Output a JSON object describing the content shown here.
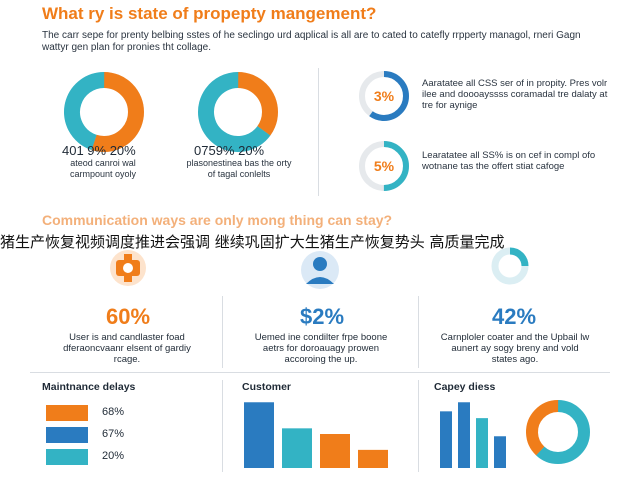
{
  "header": {
    "title": "What ry is state of propepty mangement?",
    "intro": "The carr sepe for prenty belbing sstes of he seclingo urd aqplical is all are to cated to catefly rrpperty managol, rneri Gagn wattyr gen plan for pronies tht collage."
  },
  "colors": {
    "orange": "#f07d1a",
    "blue": "#2a7bc0",
    "teal": "#33b3c4",
    "grey": "#e6e9ec"
  },
  "donuts": [
    {
      "id": "left",
      "stat": "401 9% 20%",
      "note": "ateod canroi wal carmpount oyoly",
      "segments": [
        0.55,
        0.45
      ]
    },
    {
      "id": "right",
      "stat": "0759% 20%",
      "note": "plasonestinea bas the orty of tagal conlelts",
      "segments": [
        0.35,
        0.65
      ]
    }
  ],
  "side_stats": [
    {
      "value": "3%",
      "text": "Aaratatee all CSS ser of in propity. Pres volr ilee and doooayssss coramadal tre dalaty at tre for aynige",
      "fraction": 0.6
    },
    {
      "value": "5%",
      "text": "Learatatee all SS% is on cef in compl ofo wotnane tas the offert stiat cafoge",
      "fraction": 0.5
    }
  ],
  "section": {
    "title": "Communication ways are only mong thing can stay?"
  },
  "banner": {
    "text": "猪生产恢复视频调度推进会强调 继续巩固扩大生猪生产恢复势头 高质量完成"
  },
  "cards": [
    {
      "id": "care",
      "value": "60%",
      "color": "#f07d1a",
      "text": "User is and candlaster foad dferaoncvaanr elsent of gardiy rcage."
    },
    {
      "id": "person",
      "value": "$2%",
      "color": "#2a7bc0",
      "text": "Uemed ine condilter frpe boone aetrs for doroauagy prowen accoroing the up."
    },
    {
      "id": "chart",
      "value": "42%",
      "color": "#2a7bc0",
      "text": "Carnploler coater and the Upbail lw aunert ay sogy breny and vold states ago."
    }
  ],
  "panels": {
    "maintenance": {
      "title": "Maintnance delays",
      "items": [
        {
          "value": "68%",
          "color": "#f07d1a"
        },
        {
          "value": "67%",
          "color": "#2a7bc0"
        },
        {
          "value": "20%",
          "color": "#33b3c4"
        }
      ]
    },
    "customer": {
      "title": "Customer"
    },
    "capey": {
      "title": "Capey diess"
    }
  },
  "chart_data": [
    {
      "type": "bar",
      "title": "Customer",
      "categories": [
        "1",
        "2",
        "3",
        "4"
      ],
      "values": [
        58,
        35,
        30,
        16
      ],
      "colors": [
        "#2a7bc0",
        "#33b3c4",
        "#f07d1a",
        "#f07d1a"
      ],
      "ylim": [
        0,
        60
      ]
    },
    {
      "type": "bar",
      "title": "Capey diess",
      "categories": [
        "1",
        "2",
        "3",
        "4"
      ],
      "values": [
        50,
        58,
        44,
        28
      ],
      "colors": [
        "#2a7bc0",
        "#2a7bc0",
        "#33b3c4",
        "#2a7bc0"
      ],
      "ylim": [
        0,
        60
      ]
    },
    {
      "type": "pie",
      "values": [
        0.62,
        0.38
      ],
      "colors": [
        "#33b3c4",
        "#f07d1a"
      ]
    }
  ]
}
